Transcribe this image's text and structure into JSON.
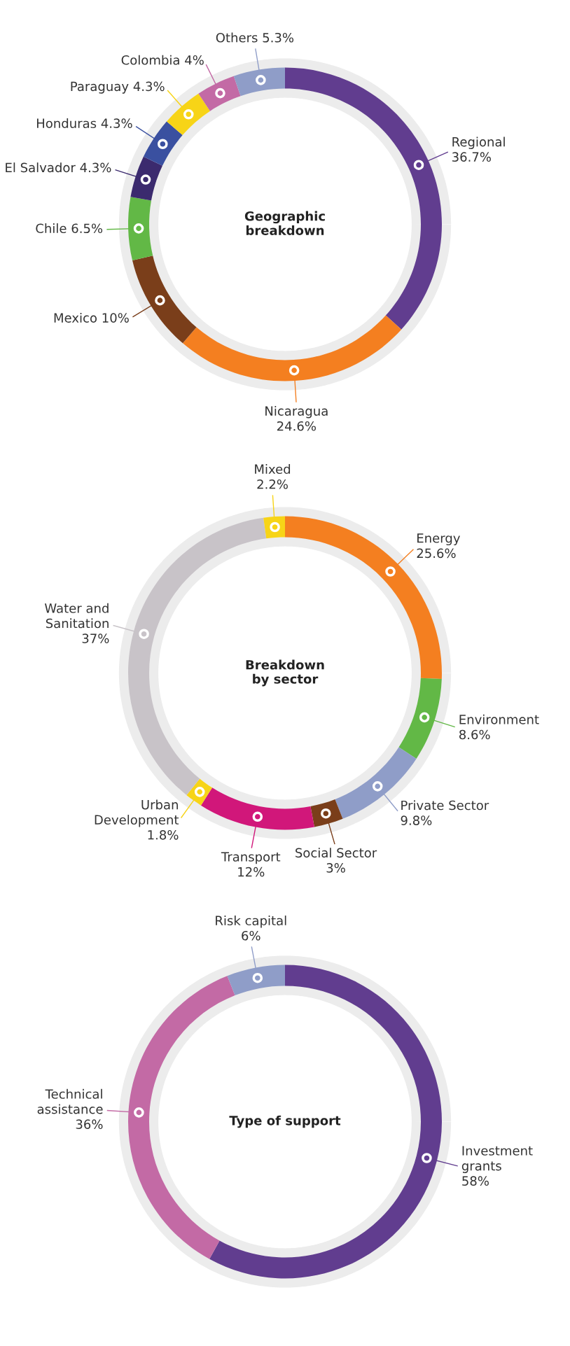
{
  "chart_data": [
    {
      "type": "donut",
      "title": "Geographic\nbreakdown",
      "categories": [
        "Regional",
        "Nicaragua",
        "Mexico",
        "Chile",
        "El Salvador",
        "Honduras",
        "Paraguay",
        "Colombia",
        "Others"
      ],
      "values": [
        36.7,
        24.6,
        10,
        6.5,
        4.3,
        4.3,
        4.3,
        4,
        5.3
      ],
      "value_labels": [
        "36.7%",
        "24.6%",
        "10%",
        "6.5%",
        "4.3%",
        "4.3%",
        "4.3%",
        "4%",
        "5.3%"
      ],
      "colors": [
        "#613d8f",
        "#f47f20",
        "#7a3e1a",
        "#62b846",
        "#3b2a6e",
        "#3a50a0",
        "#f7d417",
        "#c36aa5",
        "#8f9dc8"
      ]
    },
    {
      "type": "donut",
      "title": "Breakdown\nby sector",
      "categories": [
        "Energy",
        "Environment",
        "Private Sector",
        "Social Sector",
        "Transport",
        "Urban\nDevelopment",
        "Water and\nSanitation",
        "Mixed"
      ],
      "values": [
        25.6,
        8.6,
        9.8,
        3,
        12,
        1.8,
        37,
        2.2
      ],
      "value_labels": [
        "25.6%",
        "8.6%",
        "9.8%",
        "3%",
        "12%",
        "1.8%",
        "37%",
        "2.2%"
      ],
      "colors": [
        "#f47f20",
        "#62b846",
        "#8f9dc8",
        "#7a3e1a",
        "#d1177a",
        "#f7d417",
        "#c8c3c8",
        "#f7d417"
      ]
    },
    {
      "type": "donut",
      "title": "Type of support",
      "categories": [
        "Investment\ngrants",
        "Technical\nassistance",
        "Risk capital"
      ],
      "values": [
        58,
        36,
        6
      ],
      "value_labels": [
        "58%",
        "36%",
        "6%"
      ],
      "colors": [
        "#613d8f",
        "#c36aa5",
        "#8f9dc8"
      ]
    }
  ]
}
